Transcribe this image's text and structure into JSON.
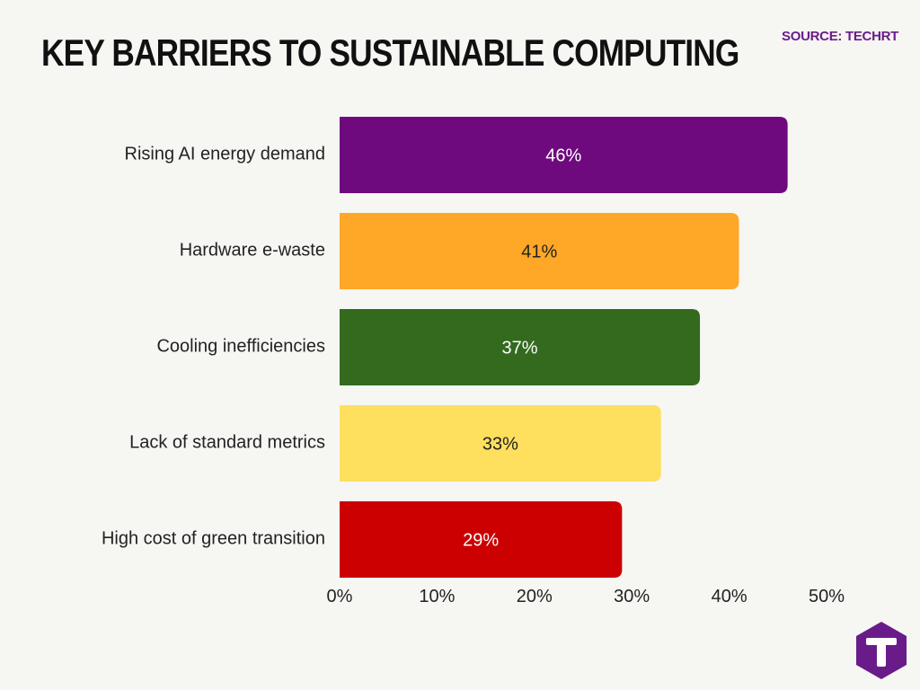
{
  "title": "KEY BARRIERS TO SUSTAINABLE COMPUTING",
  "source": "SOURCE: TECHRT",
  "logo": {
    "icon": "techrt-logo-icon",
    "letter": "T",
    "color": "#6a1b8a"
  },
  "chart_data": {
    "type": "bar",
    "orientation": "horizontal",
    "categories": [
      "Rising AI energy demand",
      "Hardware e-waste",
      "Cooling inefficiencies",
      "Lack of standard metrics",
      "High cost of green transition"
    ],
    "values": [
      46,
      41,
      37,
      33,
      29
    ],
    "data_labels": [
      "46%",
      "41%",
      "37%",
      "33%",
      "29%"
    ],
    "colors": [
      "#6e0a7e",
      "#ffa726",
      "#336a1e",
      "#ffdf5e",
      "#cc0000"
    ],
    "label_colors": [
      "#ffffff",
      "#222222",
      "#ffffff",
      "#222222",
      "#ffffff"
    ],
    "xlim": [
      0,
      50
    ],
    "xticks": [
      0,
      10,
      20,
      30,
      40,
      50
    ],
    "xtick_labels": [
      "0%",
      "10%",
      "20%",
      "30%",
      "40%",
      "50%"
    ],
    "grid": false,
    "legend": "none"
  }
}
